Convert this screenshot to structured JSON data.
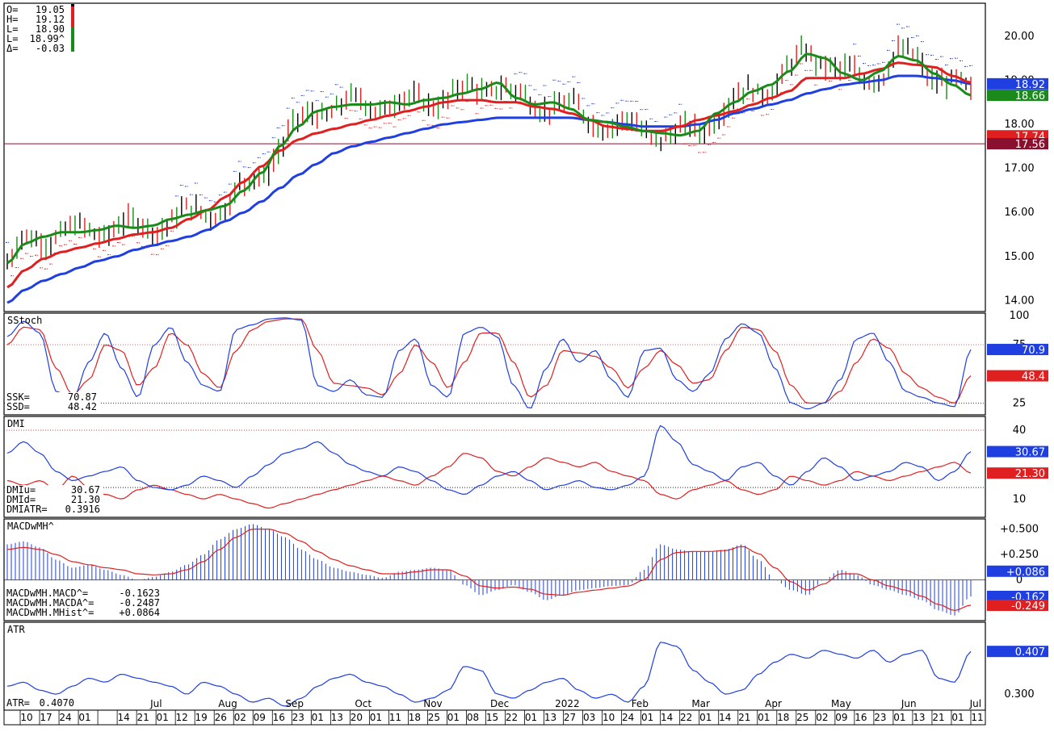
{
  "chart_data": {
    "type": "line",
    "price_panel": {
      "ohlc_readout": [
        {
          "key": "O=",
          "value": "19.05"
        },
        {
          "key": "H=",
          "value": "19.12"
        },
        {
          "key": "L=",
          "value": "18.90"
        },
        {
          "key": "L=",
          "value": "18.99^"
        },
        {
          "key": "Δ=",
          "value": "-0.03"
        }
      ],
      "y_ticks": [
        "20.00",
        "19.00",
        "18.00",
        "17.00",
        "16.00",
        "15.00",
        "14.00"
      ],
      "y_tick_values": [
        20,
        19,
        18,
        17,
        16,
        15,
        14
      ],
      "ylim": [
        13.75,
        20.75
      ],
      "hline": 17.56,
      "price_tags": [
        {
          "value": "18.92",
          "y": 18.92,
          "color": "#1f3fe0"
        },
        {
          "value": "18.66",
          "y": 18.66,
          "color": "#1a8a1a"
        },
        {
          "value": "17.74",
          "y": 17.74,
          "color": "#e02020"
        },
        {
          "value": "17.56",
          "y": 17.56,
          "color": "#8a1030"
        }
      ],
      "ma_short": [
        14.85,
        15.3,
        15.45,
        15.55,
        15.55,
        15.6,
        15.7,
        15.65,
        15.7,
        15.85,
        15.95,
        16.05,
        16.15,
        16.5,
        16.9,
        17.5,
        17.95,
        18.3,
        18.4,
        18.45,
        18.45,
        18.5,
        18.45,
        18.55,
        18.6,
        18.7,
        18.8,
        18.95,
        18.6,
        18.45,
        18.5,
        18.35,
        18.1,
        18.05,
        17.95,
        17.85,
        17.8,
        17.75,
        17.85,
        18.25,
        18.5,
        18.75,
        18.9,
        19.2,
        19.6,
        19.5,
        19.15,
        19.0,
        19.2,
        19.55,
        19.45,
        19.15,
        18.9,
        18.66
      ],
      "ma_mid": [
        14.3,
        14.7,
        14.95,
        15.1,
        15.2,
        15.3,
        15.4,
        15.5,
        15.55,
        15.65,
        15.85,
        16.05,
        16.35,
        16.7,
        17.05,
        17.4,
        17.65,
        17.8,
        17.9,
        18.0,
        18.1,
        18.2,
        18.3,
        18.4,
        18.5,
        18.55,
        18.55,
        18.5,
        18.5,
        18.4,
        18.35,
        18.25,
        18.1,
        17.95,
        17.9,
        17.85,
        17.85,
        17.95,
        18.1,
        18.2,
        18.3,
        18.45,
        18.6,
        18.75,
        19.05,
        19.05,
        19.05,
        19.15,
        19.25,
        19.4,
        19.35,
        19.3,
        19.1,
        18.95
      ],
      "ma_long": [
        13.95,
        14.25,
        14.45,
        14.6,
        14.75,
        14.9,
        15.0,
        15.15,
        15.25,
        15.35,
        15.45,
        15.6,
        15.8,
        16.0,
        16.25,
        16.55,
        16.85,
        17.1,
        17.35,
        17.5,
        17.6,
        17.7,
        17.8,
        17.9,
        18.0,
        18.05,
        18.1,
        18.15,
        18.15,
        18.15,
        18.15,
        18.15,
        18.1,
        18.05,
        18.0,
        17.95,
        17.95,
        17.95,
        18.0,
        18.1,
        18.25,
        18.35,
        18.45,
        18.55,
        18.7,
        18.8,
        18.9,
        18.95,
        19.0,
        19.1,
        19.1,
        19.05,
        19.0,
        18.92
      ]
    },
    "sstoch_panel": {
      "title": "SStoch",
      "readout": [
        {
          "key": "SSK=",
          "value": "70.87"
        },
        {
          "key": "SSD=",
          "value": "48.42"
        }
      ],
      "y_ticks": [
        "100",
        "75",
        "25"
      ],
      "y_tick_values": [
        100,
        75,
        25
      ],
      "ylim": [
        15,
        102
      ],
      "ref_lines": [
        75,
        25
      ],
      "tags": [
        {
          "value": "70.9",
          "y": 70.9,
          "color": "#1f3fe0"
        },
        {
          "value": "48.4",
          "y": 48.4,
          "color": "#e02020"
        }
      ],
      "ssk": [
        82,
        95,
        85,
        35,
        28,
        60,
        85,
        55,
        30,
        75,
        90,
        60,
        40,
        35,
        88,
        92,
        97,
        98,
        96,
        40,
        35,
        45,
        32,
        30,
        70,
        80,
        40,
        30,
        85,
        90,
        82,
        40,
        20,
        55,
        80,
        60,
        70,
        45,
        30,
        70,
        72,
        45,
        35,
        50,
        80,
        93,
        85,
        55,
        25,
        20,
        25,
        45,
        80,
        85,
        60,
        35,
        30,
        25,
        22,
        70.87
      ],
      "ssd": [
        75,
        90,
        88,
        55,
        32,
        45,
        75,
        70,
        40,
        55,
        85,
        75,
        50,
        38,
        70,
        88,
        95,
        97,
        97,
        70,
        42,
        40,
        38,
        32,
        50,
        75,
        60,
        38,
        60,
        85,
        85,
        60,
        30,
        40,
        70,
        68,
        65,
        55,
        38,
        55,
        70,
        58,
        42,
        45,
        70,
        90,
        88,
        70,
        40,
        25,
        25,
        35,
        60,
        80,
        72,
        50,
        38,
        30,
        25,
        48.42
      ]
    },
    "dmi_panel": {
      "title": "DMI",
      "readout": [
        {
          "key": "DMIu=",
          "value": "30.67"
        },
        {
          "key": "DMId=",
          "value": "21.30"
        },
        {
          "key": "DMIATR=",
          "value": "0.3916"
        }
      ],
      "y_ticks": [
        "40",
        "10"
      ],
      "y_tick_values": [
        40,
        10
      ],
      "ylim": [
        2,
        46
      ],
      "ref_lines": [
        40,
        15
      ],
      "tags": [
        {
          "value": "30.67",
          "y": 30.67,
          "color": "#1f3fe0"
        },
        {
          "value": "21.30",
          "y": 21.3,
          "color": "#e02020"
        }
      ],
      "dmiu": [
        30,
        35,
        30,
        22,
        18,
        20,
        22,
        24,
        18,
        15,
        14,
        16,
        20,
        18,
        15,
        20,
        25,
        30,
        32,
        35,
        30,
        25,
        22,
        20,
        24,
        22,
        18,
        14,
        12,
        16,
        20,
        22,
        18,
        14,
        16,
        18,
        15,
        14,
        16,
        20,
        42,
        35,
        25,
        22,
        18,
        24,
        26,
        20,
        16,
        22,
        28,
        24,
        18,
        20,
        22,
        26,
        24,
        18,
        22,
        30.67
      ],
      "dmid": [
        18,
        16,
        18,
        14,
        20,
        15,
        12,
        10,
        14,
        16,
        14,
        12,
        10,
        12,
        10,
        8,
        6,
        8,
        10,
        12,
        14,
        16,
        18,
        20,
        18,
        16,
        20,
        24,
        30,
        28,
        22,
        20,
        24,
        28,
        26,
        24,
        26,
        22,
        20,
        18,
        12,
        10,
        14,
        16,
        18,
        14,
        12,
        14,
        20,
        18,
        16,
        18,
        22,
        20,
        18,
        20,
        22,
        24,
        26,
        21.3
      ]
    },
    "macd_panel": {
      "title": "MACDwMH^",
      "readout": [
        {
          "key": "MACDwMH.MACD^=",
          "value": "-0.1623"
        },
        {
          "key": "MACDwMH.MACDA^=",
          "value": "-0.2487"
        },
        {
          "key": "MACDwMH.MHist^=",
          "value": "+0.0864"
        }
      ],
      "y_ticks": [
        "+0.500",
        "+0.250",
        "0"
      ],
      "y_tick_values": [
        0.5,
        0.25,
        0
      ],
      "ylim": [
        -0.4,
        0.6
      ],
      "tags": [
        {
          "value": "+0.086",
          "y": 0.086,
          "color": "#1f3fe0"
        },
        {
          "value": "-0.162",
          "y": -0.162,
          "color": "#1f3fe0"
        },
        {
          "value": "-0.249",
          "y": -0.249,
          "color": "#e02020"
        }
      ],
      "macd": [
        0.35,
        0.38,
        0.32,
        0.2,
        0.12,
        0.15,
        0.1,
        0.05,
        0.0,
        0.03,
        0.08,
        0.15,
        0.25,
        0.4,
        0.5,
        0.55,
        0.5,
        0.42,
        0.3,
        0.2,
        0.12,
        0.08,
        0.05,
        0.02,
        0.08,
        0.1,
        0.12,
        0.1,
        -0.05,
        -0.15,
        -0.1,
        -0.05,
        -0.12,
        -0.2,
        -0.15,
        -0.1,
        -0.08,
        -0.06,
        -0.05,
        0.1,
        0.35,
        0.3,
        0.28,
        0.28,
        0.3,
        0.35,
        0.2,
        0.0,
        -0.1,
        -0.15,
        0.0,
        0.1,
        0.05,
        -0.05,
        -0.1,
        -0.15,
        -0.2,
        -0.3,
        -0.35,
        -0.1623
      ],
      "macda": [
        0.3,
        0.32,
        0.3,
        0.25,
        0.18,
        0.15,
        0.12,
        0.1,
        0.06,
        0.05,
        0.06,
        0.1,
        0.18,
        0.3,
        0.42,
        0.5,
        0.5,
        0.46,
        0.38,
        0.28,
        0.2,
        0.14,
        0.1,
        0.06,
        0.06,
        0.08,
        0.1,
        0.1,
        0.04,
        -0.06,
        -0.08,
        -0.07,
        -0.09,
        -0.14,
        -0.15,
        -0.12,
        -0.1,
        -0.08,
        -0.06,
        0.0,
        0.2,
        0.27,
        0.28,
        0.28,
        0.29,
        0.33,
        0.26,
        0.12,
        -0.02,
        -0.1,
        -0.04,
        0.06,
        0.06,
        0.0,
        -0.06,
        -0.1,
        -0.16,
        -0.24,
        -0.3,
        -0.2487
      ]
    },
    "atr_panel": {
      "title": "ATR",
      "readout": [
        {
          "key": "ATR=",
          "value": "0.4070"
        }
      ],
      "y_ticks": [
        "0.300"
      ],
      "y_tick_values": [
        0.3
      ],
      "ylim": [
        0.26,
        0.48
      ],
      "tags": [
        {
          "value": "0.407",
          "y": 0.407,
          "color": "#1f3fe0"
        }
      ],
      "atr": [
        0.32,
        0.33,
        0.31,
        0.3,
        0.32,
        0.34,
        0.33,
        0.35,
        0.34,
        0.33,
        0.32,
        0.3,
        0.33,
        0.32,
        0.3,
        0.28,
        0.29,
        0.27,
        0.29,
        0.32,
        0.34,
        0.35,
        0.33,
        0.32,
        0.3,
        0.28,
        0.29,
        0.31,
        0.37,
        0.36,
        0.3,
        0.29,
        0.31,
        0.33,
        0.34,
        0.31,
        0.29,
        0.3,
        0.28,
        0.32,
        0.43,
        0.42,
        0.36,
        0.33,
        0.3,
        0.31,
        0.35,
        0.38,
        0.4,
        0.39,
        0.41,
        0.4,
        0.39,
        0.41,
        0.38,
        0.4,
        0.41,
        0.34,
        0.33,
        0.407
      ]
    },
    "x_months": [
      {
        "label": "Jul",
        "pos": 0.155
      },
      {
        "label": "Aug",
        "pos": 0.228
      },
      {
        "label": "Sep",
        "pos": 0.296
      },
      {
        "label": "Oct",
        "pos": 0.366
      },
      {
        "label": "Nov",
        "pos": 0.437
      },
      {
        "label": "Dec",
        "pos": 0.505
      },
      {
        "label": "2022",
        "pos": 0.574
      },
      {
        "label": "Feb",
        "pos": 0.648
      },
      {
        "label": "Mar",
        "pos": 0.71
      },
      {
        "label": "Apr",
        "pos": 0.784
      },
      {
        "label": "May",
        "pos": 0.853
      },
      {
        "label": "Jun",
        "pos": 0.922
      },
      {
        "label": "Jul",
        "pos": 0.99
      }
    ],
    "x_days": [
      "10",
      "17",
      "24",
      "01",
      "",
      "14",
      "21",
      "01",
      "12",
      "19",
      "26",
      "02",
      "09",
      "16",
      "23",
      "01",
      "13",
      "20",
      "01",
      "11",
      "18",
      "25",
      "01",
      "08",
      "15",
      "22",
      "01",
      "13",
      "27",
      "03",
      "10",
      "24",
      "01",
      "14",
      "22",
      "01",
      "14",
      "21",
      "01",
      "18",
      "25",
      "02",
      "09",
      "16",
      "23",
      "01",
      "13",
      "21",
      "01",
      "11"
    ]
  }
}
